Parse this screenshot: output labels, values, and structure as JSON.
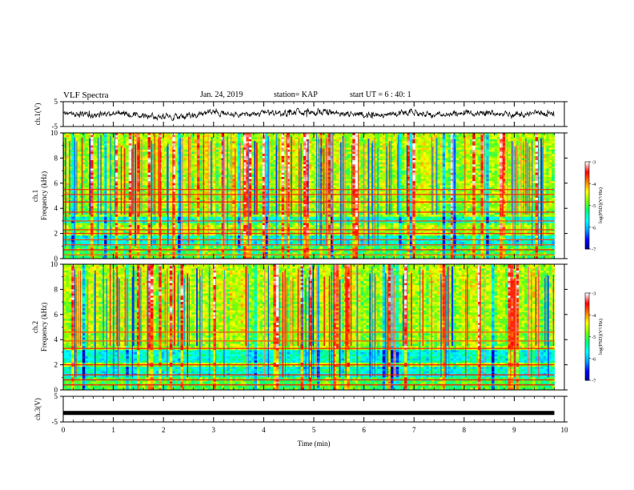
{
  "header": {
    "title": "VLF Spectra",
    "date": "Jan. 24, 2019",
    "station": "station= KAP",
    "start": "start  UT =   6 : 40: 1"
  },
  "chart_data": [
    {
      "type": "line",
      "panel": "ch1-waveform",
      "ylabel": "ch.1(V)",
      "ylim": [
        -5,
        5
      ],
      "yticks": [
        5,
        -5
      ],
      "xlim": [
        0,
        10
      ],
      "notes": "noisy waveform, roughly -3 to +2 V, mean ~0",
      "series": [
        {
          "x": [
            0,
            0.5,
            1,
            1.5,
            2,
            2.5,
            3,
            3.5,
            4,
            4.5,
            5,
            5.5,
            6,
            6.5,
            7,
            7.5,
            8,
            8.5,
            9,
            9.5,
            9.8
          ],
          "y": [
            0.5,
            -0.5,
            0.3,
            -0.3,
            -1,
            -0.6,
            0.8,
            -0.2,
            0.3,
            0.6,
            0.9,
            0.4,
            -0.3,
            0.2,
            0.4,
            -0.2,
            0.6,
            0.4,
            -0.4,
            0.5,
            -0.4
          ],
          "color": "#000000"
        }
      ]
    },
    {
      "type": "heatmap",
      "panel": "ch1-spectrogram",
      "ylabel_line1": "ch.1",
      "ylabel_line2": "Frequency  (kHz)",
      "ylim": [
        0,
        10
      ],
      "yticks": [
        0,
        2,
        4,
        6,
        8,
        10
      ],
      "xlim": [
        0,
        10
      ],
      "data_end_min": 9.8,
      "colorbar": {
        "label": "log(PSD)(V²/Hz)",
        "range": [
          -7,
          -3
        ],
        "ticks": [
          -3,
          -4,
          -5,
          -6,
          -7
        ]
      },
      "emission_bands_khz": [
        0.3,
        0.7,
        1.1,
        1.5,
        2.0,
        2.3,
        3.0,
        3.7,
        4.5,
        5.1,
        5.5
      ],
      "low_power_bands_khz": [
        [
          2.8,
          3.3
        ],
        [
          1.0,
          1.8
        ]
      ]
    },
    {
      "type": "heatmap",
      "panel": "ch2-spectrogram",
      "ylabel_line1": "ch.2",
      "ylabel_line2": "Frequency  (kHz)",
      "ylim": [
        0,
        10
      ],
      "yticks": [
        0,
        2,
        4,
        6,
        8,
        10
      ],
      "xlim": [
        0,
        10
      ],
      "data_end_min": 9.8,
      "colorbar": {
        "label": "log(PSD)(V²/Hz)",
        "range": [
          -7,
          -3
        ],
        "ticks": [
          -3,
          -4,
          -5,
          -6,
          -7
        ]
      },
      "emission_bands_khz": [
        0.4,
        0.8,
        1.2,
        2.0,
        3.3,
        3.9,
        4.6
      ],
      "low_power_bands_khz": [
        [
          2.2,
          3.1
        ],
        [
          0.9,
          1.9
        ]
      ]
    },
    {
      "type": "line",
      "panel": "ch3-waveform",
      "ylabel": "ch.3(V)",
      "ylim": [
        -5,
        5
      ],
      "yticks": [
        5,
        -5
      ],
      "xlim": [
        0,
        10
      ],
      "series": [
        {
          "x": [
            0,
            9.8
          ],
          "y": [
            -1.5,
            -1.5
          ],
          "color": "#000000"
        }
      ]
    }
  ],
  "xaxis": {
    "label": "Time  (min)",
    "ticks": [
      0,
      1,
      2,
      3,
      4,
      5,
      6,
      7,
      8,
      9,
      10
    ]
  },
  "colors": {
    "scale": [
      "#000090",
      "#0000ff",
      "#00a0ff",
      "#00ffff",
      "#00ff80",
      "#80ff00",
      "#ffff00",
      "#ff8000",
      "#ff0000",
      "#ffffff"
    ]
  }
}
